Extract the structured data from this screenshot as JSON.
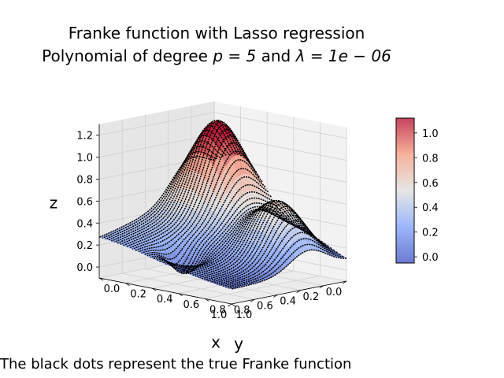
{
  "title_line1": "Franke function with Lasso regression",
  "title_line2_prefix": "Polynomial of degree ",
  "title_p": "p = 5",
  "title_mid": " and ",
  "title_lambda": "λ = 1e − 06",
  "caption": "The black dots represent the true Franke function",
  "chart_data": {
    "type": "surface3d",
    "title": "Franke function with Lasso regression Polynomial of degree p = 5 and λ = 1e − 06",
    "xlabel": "x",
    "ylabel": "y",
    "zlabel": "z",
    "xlim": [
      0,
      1
    ],
    "ylim": [
      0,
      1
    ],
    "zlim": [
      -0.1,
      1.3
    ],
    "x_ticks": [
      "0.0",
      "0.2",
      "0.4",
      "0.6",
      "0.8",
      "1.0"
    ],
    "y_ticks": [
      "0.0",
      "0.2",
      "0.4",
      "0.6",
      "0.8",
      "1.0"
    ],
    "z_ticks": [
      "0.0",
      "0.2",
      "0.4",
      "0.6",
      "0.8",
      "1.0",
      "1.2"
    ],
    "colormap": "coolwarm",
    "colorbar": {
      "range": [
        -0.05,
        1.12
      ],
      "ticks": [
        "0.0",
        "0.2",
        "0.4",
        "0.6",
        "0.8",
        "1.0"
      ]
    },
    "series": [
      {
        "kind": "surface",
        "degree": 5,
        "lambda": 1e-06
      },
      {
        "kind": "scatter",
        "color": "#000000"
      }
    ],
    "grid": true,
    "colors": {
      "low": "#3b4cc0",
      "mid": "#dddddd",
      "high": "#b40426",
      "points": "#000000"
    }
  }
}
